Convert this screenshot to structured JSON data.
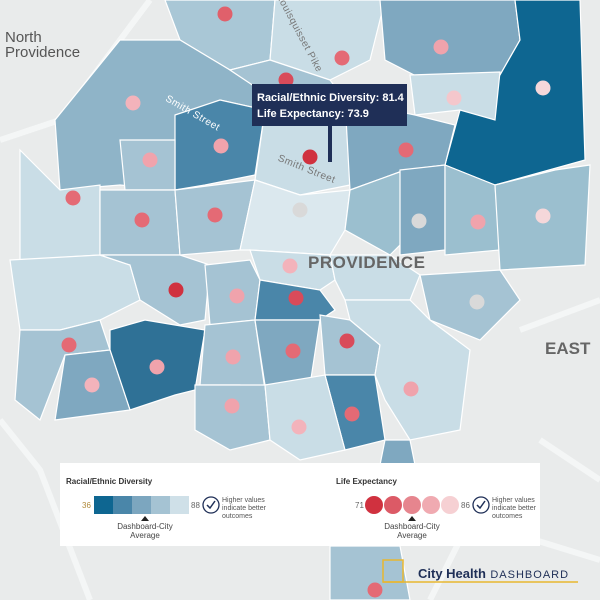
{
  "map": {
    "place_labels": [
      "North Providence",
      "PROVIDENCE",
      "EAST"
    ],
    "street_labels": [
      "Smith Street",
      "Smith Street",
      "Louisquisset Pike"
    ],
    "tooltip": [
      "Racial/Ethnic Diversity: 81.4",
      "Life Expectancy: 73.9"
    ],
    "legends": [
      {
        "title": "Racial/Ethnic Diversity",
        "min": 36,
        "max": 88,
        "marker": "Dashboard-City Average",
        "note": "Higher values indicate better outcomes"
      },
      {
        "title": "Life Expectancy",
        "min": 71,
        "max": 86,
        "marker": "Dashboard-City Average",
        "note": "Higher values indicate better outcomes"
      }
    ],
    "logo": {
      "name": "City Health",
      "suffix": "DASHBOARD"
    }
  }
}
